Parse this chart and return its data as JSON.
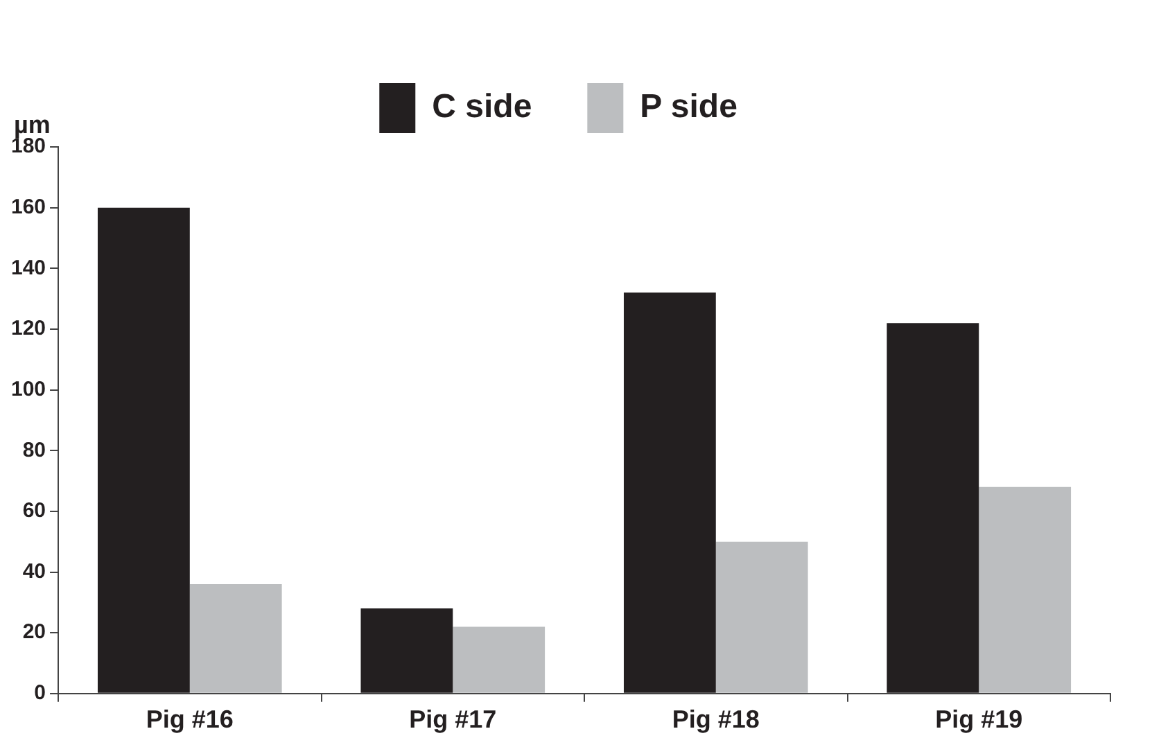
{
  "chart_data": {
    "type": "bar",
    "ylabel": "µm",
    "categories": [
      "Pig #16",
      "Pig #17",
      "Pig #18",
      "Pig #19"
    ],
    "series": [
      {
        "name": "C side",
        "color": "#231f20",
        "values": [
          160,
          28,
          132,
          122
        ]
      },
      {
        "name": "P side",
        "color": "#bcbec0",
        "values": [
          36,
          22,
          50,
          68
        ]
      }
    ],
    "ylim": [
      0,
      180
    ],
    "yticks": [
      0,
      20,
      40,
      60,
      80,
      100,
      120,
      140,
      160,
      180
    ],
    "grid": false,
    "legend": "top"
  }
}
